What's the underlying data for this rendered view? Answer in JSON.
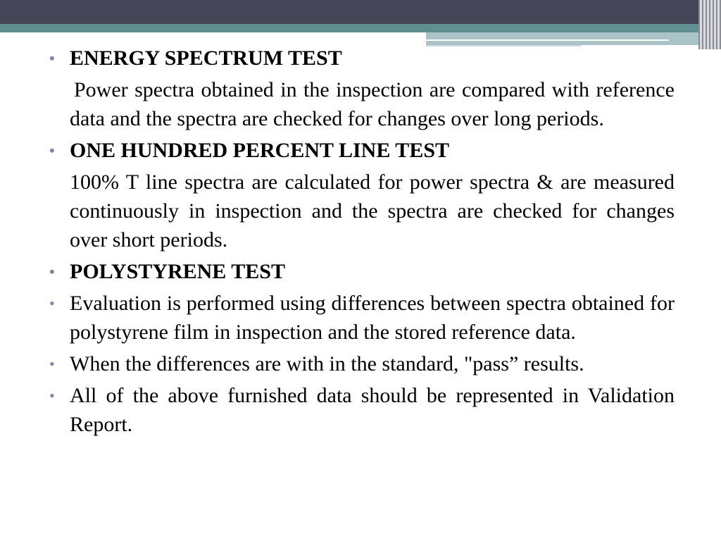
{
  "slide": {
    "items": [
      {
        "type": "heading",
        "bullet": "•",
        "text": "ENERGY SPECTRUM TEST"
      },
      {
        "type": "sub",
        "text": "Power spectra obtained in the inspection are compared with reference data and the spectra are checked for changes over long periods."
      },
      {
        "type": "heading",
        "bullet": "•",
        "text": "ONE HUNDRED PERCENT LINE TEST"
      },
      {
        "type": "sub",
        "text": "100% T line spectra are calculated for power spectra & are measured continuously in inspection and the spectra are checked for changes over short periods."
      },
      {
        "type": "heading",
        "bullet": "•",
        "text": "POLYSTYRENE TEST"
      },
      {
        "type": "bullet",
        "bullet": "•",
        "text": "Evaluation is performed using differences between spectra obtained for polystyrene film in inspection and  the stored reference data."
      },
      {
        "type": "bullet",
        "bullet": "•",
        "text": "When the differences are with in the standard, \"pass” results."
      },
      {
        "type": "bullet",
        "bullet": "•",
        "text": "All of the above furnished data should be represented in Validation Report."
      }
    ]
  },
  "colors": {
    "header_dark": "#454759",
    "header_teal": "#5f8f8f",
    "bullet": "#8a7fb2",
    "text": "#000000"
  }
}
